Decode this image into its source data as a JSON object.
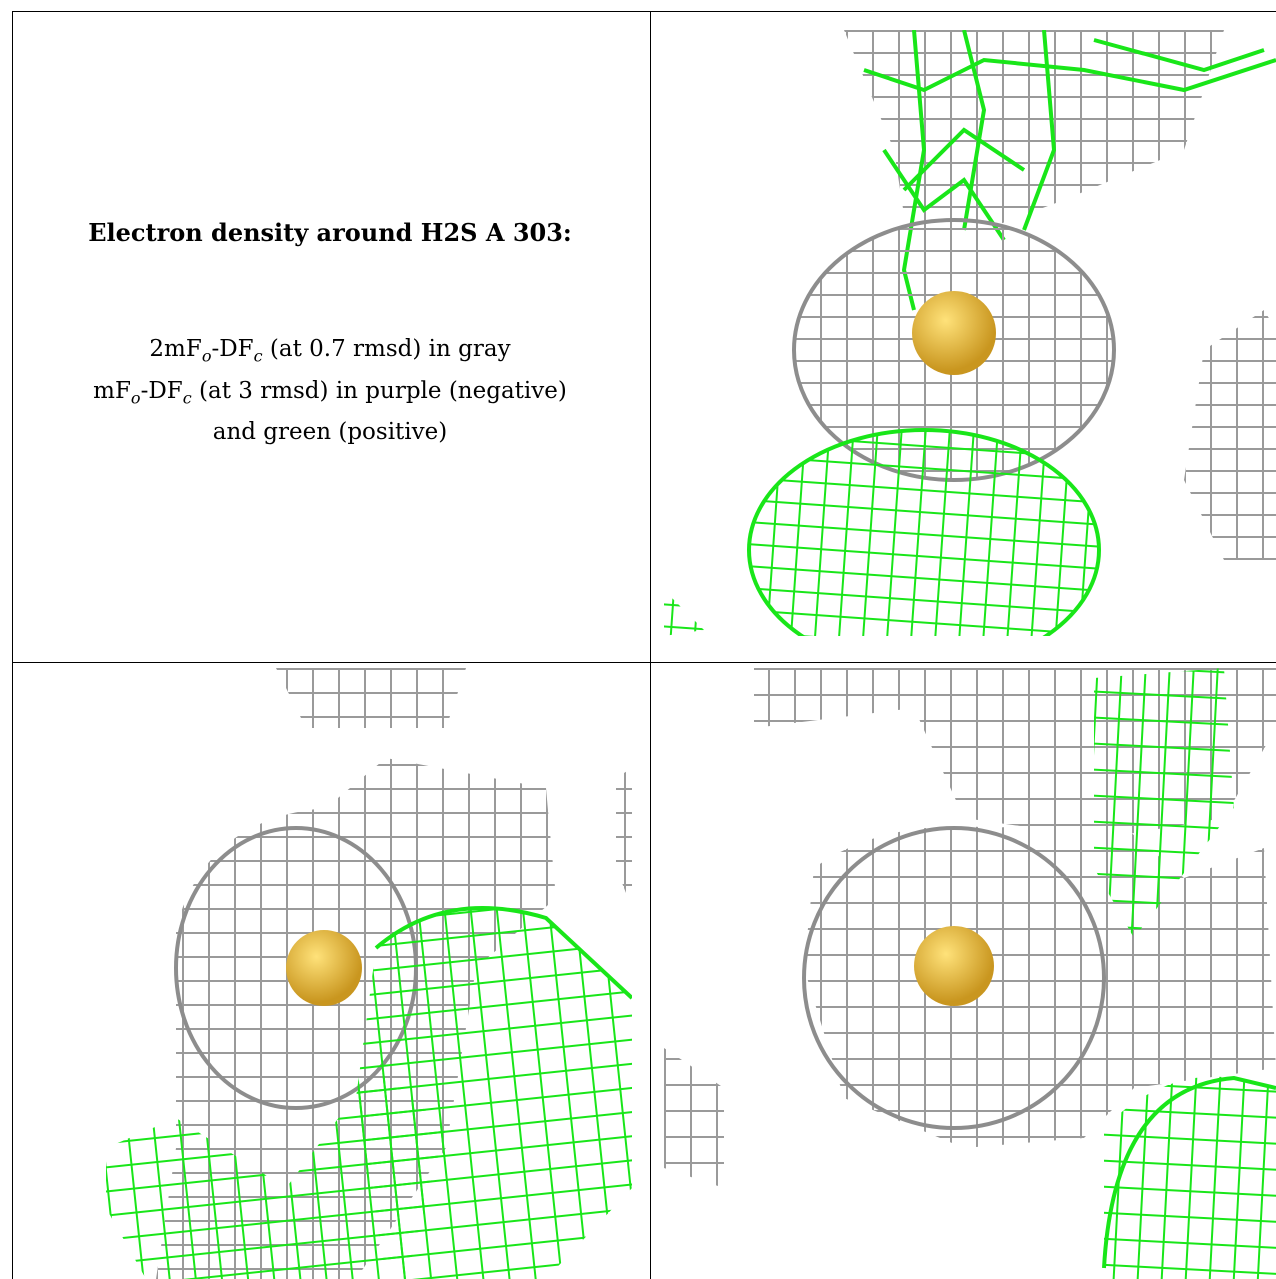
{
  "caption": {
    "title": "Electron density around H2S A 303:",
    "line1_a": "2mF",
    "line1_sub1": "o",
    "line1_b": "-DF",
    "line1_sub2": "c",
    "line1_c": " (at 0.7 rmsd) in gray",
    "line2_a": "mF",
    "line2_sub1": "o",
    "line2_b": "-DF",
    "line2_sub2": "c",
    "line2_c": " (at 3 rmsd) in purple (negative)",
    "line3": "and green (positive)"
  },
  "colors": {
    "gray_mesh": "#9a9a9a",
    "light_gray_mesh": "#cfcfcf",
    "green_mesh": "#19e619",
    "atom": "#e8b93a",
    "atom_highlight": "#ffe27a"
  },
  "panels": [
    {
      "name": "view-top-right",
      "atom": "sulfur"
    },
    {
      "name": "view-bottom-left",
      "atom": "sulfur"
    },
    {
      "name": "view-bottom-right",
      "atom": "sulfur"
    }
  ]
}
